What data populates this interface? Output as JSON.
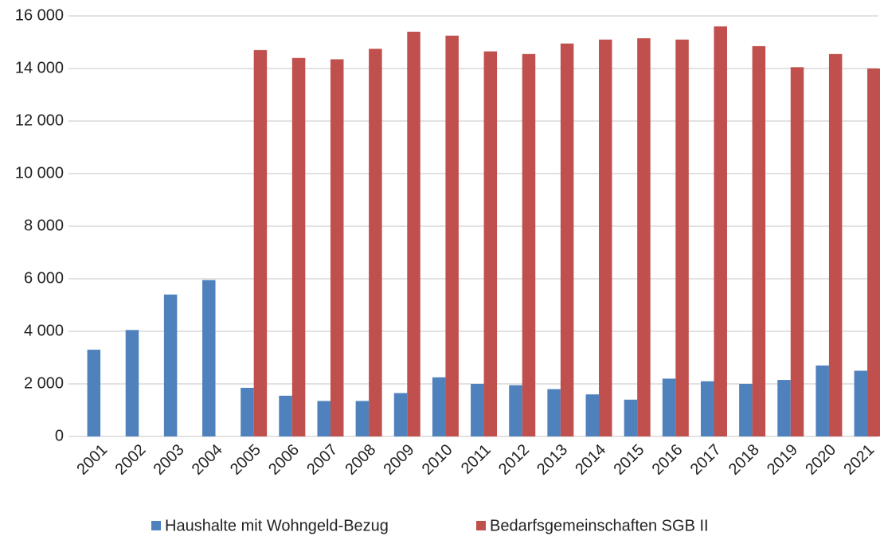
{
  "chart_data": {
    "type": "bar",
    "categories": [
      "2001",
      "2002",
      "2003",
      "2004",
      "2005",
      "2006",
      "2007",
      "2008",
      "2009",
      "2010",
      "2011",
      "2012",
      "2013",
      "2014",
      "2015",
      "2016",
      "2017",
      "2018",
      "2019",
      "2020",
      "2021"
    ],
    "series": [
      {
        "name": "Haushalte mit Wohngeld-Bezug",
        "color": "#4f81bd",
        "values": [
          3300,
          4050,
          5400,
          5950,
          1850,
          1550,
          1350,
          1350,
          1650,
          2250,
          2000,
          1950,
          1800,
          1600,
          1400,
          2200,
          2100,
          2000,
          2150,
          2700,
          2500
        ]
      },
      {
        "name": "Bedarfsgemeinschaften SGB II",
        "color": "#c0504d",
        "values": [
          null,
          null,
          null,
          null,
          14700,
          14400,
          14350,
          14750,
          15400,
          15250,
          14650,
          14550,
          14950,
          15100,
          15150,
          15100,
          15600,
          14850,
          14050,
          14550,
          14000
        ]
      }
    ],
    "ylim": [
      0,
      16000
    ],
    "yticks": [
      0,
      {
        "value": 2000,
        "label": "2 000"
      },
      {
        "value": 4000,
        "label": "4 000"
      },
      {
        "value": 6000,
        "label": "6 000"
      },
      {
        "value": 8000,
        "label": "8 000"
      },
      {
        "value": 10000,
        "label": "10 000"
      },
      {
        "value": 12000,
        "label": "12 000"
      },
      {
        "value": 14000,
        "label": "14 000"
      },
      {
        "value": 16000,
        "label": "16 000"
      }
    ],
    "grid": true,
    "legend": "bottom"
  }
}
